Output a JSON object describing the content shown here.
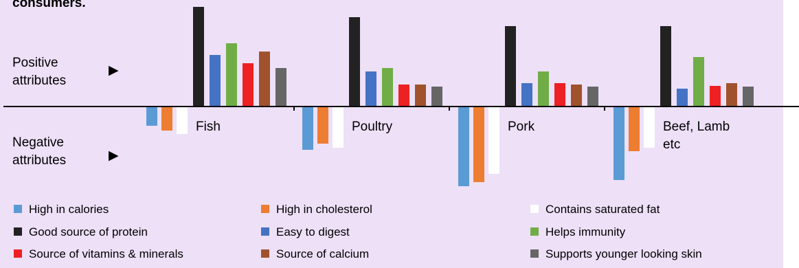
{
  "chart_data": {
    "type": "bar",
    "title": "consumers.",
    "row_labels": {
      "positive": [
        "Positive",
        "attributes"
      ],
      "negative": [
        "Negative",
        "attributes"
      ]
    },
    "marker_glyph": "▶",
    "categories": [
      "Fish",
      "Poultry",
      "Pork",
      "Beef, Lamb etc"
    ],
    "category_label_lines": [
      [
        "Fish"
      ],
      [
        "Poultry"
      ],
      [
        "Pork"
      ],
      [
        "Beef, Lamb",
        "etc"
      ]
    ],
    "negative_series": [
      {
        "name": "High in calories",
        "color": "#5b9bd5",
        "values": [
          -28,
          -63,
          -116,
          -107
        ]
      },
      {
        "name": "High in cholesterol",
        "color": "#ed7d31",
        "values": [
          -35,
          -54,
          -110,
          -65
        ]
      },
      {
        "name": "Contains saturated fat",
        "color": "#ffffff",
        "values": [
          -40,
          -60,
          -98,
          -60
        ]
      }
    ],
    "positive_series": [
      {
        "name": "Good source of protein",
        "color": "#222222",
        "values": [
          145,
          130,
          117,
          117
        ]
      },
      {
        "name": "Easy to digest",
        "color": "#4472c4",
        "values": [
          75,
          51,
          34,
          26
        ]
      },
      {
        "name": "Helps immunity",
        "color": "#70ad47",
        "values": [
          92,
          56,
          51,
          72
        ]
      },
      {
        "name": "Source of vitamins & minerals",
        "color": "#ed2024",
        "values": [
          63,
          32,
          34,
          30
        ]
      },
      {
        "name": "Source of calcium",
        "color": "#a0522d",
        "values": [
          80,
          32,
          32,
          34
        ]
      },
      {
        "name": "Supports younger looking skin",
        "color": "#666666",
        "values": [
          56,
          29,
          29,
          29
        ]
      }
    ],
    "legend_order": [
      "High in calories",
      "High in cholesterol",
      "Contains saturated fat",
      "Good source of protein",
      "Easy to digest",
      "Helps immunity",
      "Source of vitamins & minerals",
      "Source of calcium",
      "Supports younger looking skin"
    ],
    "background": "#ede0f7",
    "legend_placement": "bottom",
    "grid": false
  }
}
